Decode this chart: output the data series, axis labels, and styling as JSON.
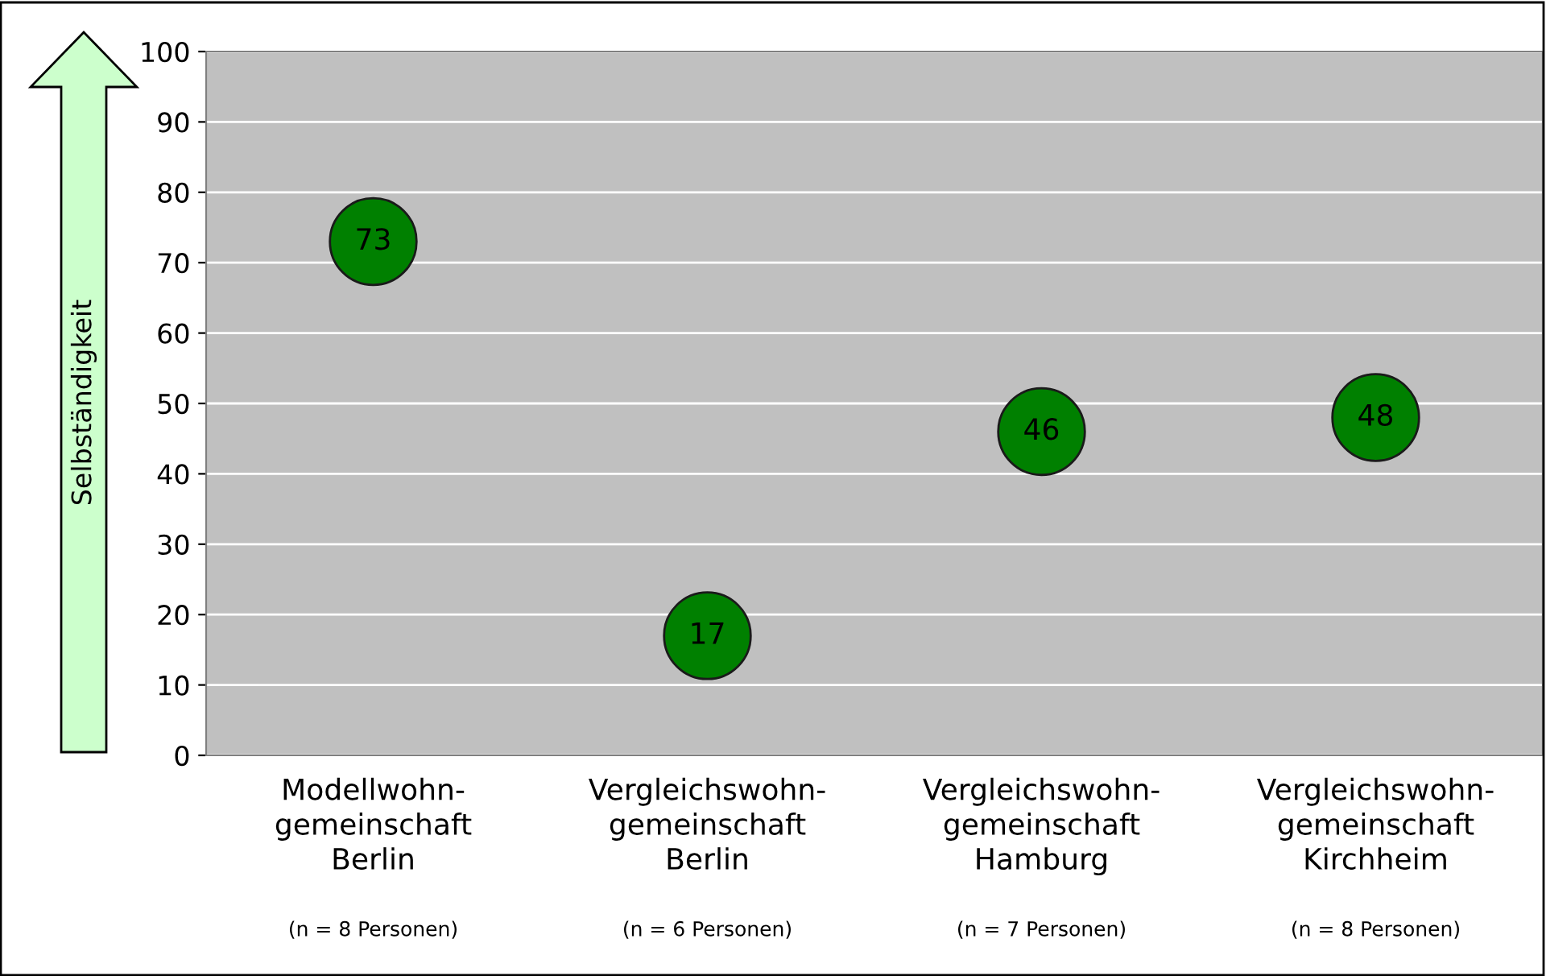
{
  "chart_data": {
    "type": "scatter",
    "ylabel": "Selbständigkeit",
    "categories": [
      "Modellwohn-\ngemeinschaft\nBerlin",
      "Vergleichswohn-\ngemeinschaft\nBerlin",
      "Vergleichswohn-\ngemeinschaft\nHamburg",
      "Vergleichswohn-\ngemeinschaft\nKirchheim"
    ],
    "series": [
      {
        "color": "#008000",
        "values": [
          73,
          17,
          46,
          48
        ]
      }
    ],
    "data_labels": true,
    "ylim": [
      0,
      100
    ],
    "yticks": [
      0,
      10,
      20,
      30,
      40,
      50,
      60,
      70,
      80,
      90,
      100
    ],
    "grid": "y",
    "marker": "circle",
    "annotations": [
      "(n = 8 Personen)",
      "(n = 6 Personen)",
      "(n = 7 Personen)",
      "(n = 8 Personen)"
    ]
  }
}
